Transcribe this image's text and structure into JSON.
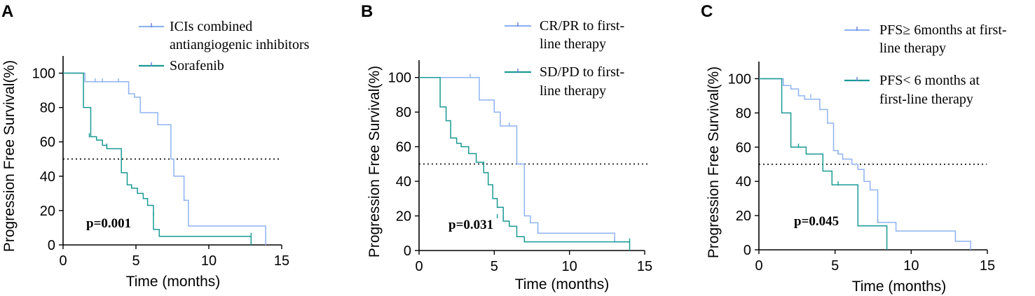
{
  "colors": {
    "series1": "#8fb3f0",
    "series2": "#1a9a94"
  },
  "chart_data": [
    {
      "type": "line",
      "panel": "A",
      "title": "",
      "xlabel": "Time (months)",
      "ylabel": "Progression Free Survival(%)",
      "xlim": [
        0,
        15
      ],
      "ylim": [
        0,
        110
      ],
      "xticks": [
        "0",
        "5",
        "10",
        "15"
      ],
      "yticks": [
        "0",
        "20",
        "40",
        "60",
        "80",
        "100"
      ],
      "median_line": 50,
      "p_value": "p=0.001",
      "legend_lines": [
        {
          "text": "ICIs combined",
          "series": 0
        },
        {
          "text": "antiangiogenic inhibitors",
          "series": -1
        },
        {
          "text": "Sorafenib",
          "series": 1
        }
      ],
      "series": [
        {
          "name": "ICIs combined antiangiogenic inhibitors",
          "x": [
            0,
            1.5,
            1.5,
            4.5,
            4.5,
            4.9,
            4.9,
            5.3,
            5.3,
            6.5,
            6.5,
            7.4,
            7.4,
            7.6,
            7.6,
            8.3,
            8.3,
            8.6,
            8.6,
            13.9,
            13.9
          ],
          "y": [
            100,
            100,
            95,
            95,
            88,
            88,
            86,
            86,
            77,
            77,
            70,
            70,
            50,
            50,
            40,
            40,
            26,
            26,
            11,
            11,
            0
          ],
          "censored": [
            [
              2.2,
              95
            ],
            [
              2.7,
              95
            ],
            [
              3.8,
              95
            ],
            [
              4.5,
              89
            ],
            [
              8.3,
              26
            ]
          ]
        },
        {
          "name": "Sorafenib",
          "x": [
            0,
            1.4,
            1.4,
            1.9,
            1.9,
            2.3,
            2.3,
            2.7,
            2.7,
            3.0,
            3.0,
            4.0,
            4.0,
            4.4,
            4.4,
            4.7,
            4.7,
            5.1,
            5.1,
            5.5,
            5.5,
            5.8,
            5.8,
            6.2,
            6.2,
            6.6,
            6.6,
            12.9,
            12.9
          ],
          "y": [
            100,
            100,
            80,
            80,
            63,
            63,
            61,
            61,
            58,
            58,
            56,
            56,
            42,
            42,
            35,
            35,
            33,
            33,
            30,
            30,
            27,
            27,
            23,
            23,
            9,
            9,
            5,
            5,
            0
          ],
          "censored": [
            [
              1.8,
              63
            ],
            [
              3.0,
              57
            ],
            [
              6.2,
              17
            ],
            [
              12.9,
              5
            ]
          ]
        }
      ]
    },
    {
      "type": "line",
      "panel": "B",
      "title": "",
      "xlabel": "Time (months)",
      "ylabel": "Progression Free Survival(%)",
      "xlim": [
        0,
        15
      ],
      "ylim": [
        0,
        110
      ],
      "xticks": [
        "0",
        "5",
        "10",
        "15"
      ],
      "yticks": [
        "0",
        "20",
        "40",
        "60",
        "80",
        "100"
      ],
      "median_line": 50,
      "p_value": "p=0.031",
      "legend_lines": [
        {
          "text": "CR/PR to first-",
          "series": 0
        },
        {
          "text": "line therapy",
          "series": -1
        },
        {
          "text": "SD/PD to first-",
          "series": 1
        },
        {
          "text": "line therapy",
          "series": -1
        }
      ],
      "series": [
        {
          "name": "CR/PR to first-line therapy",
          "x": [
            0,
            4.0,
            4.0,
            5.0,
            5.0,
            5.4,
            5.4,
            6.5,
            6.5,
            7.0,
            7.0,
            7.4,
            7.4,
            7.9,
            7.9,
            13.0,
            13.0,
            14.0
          ],
          "y": [
            100,
            100,
            87,
            87,
            80,
            80,
            72,
            72,
            50,
            50,
            20,
            20,
            16,
            16,
            10,
            10,
            5,
            5
          ],
          "censored": [
            [
              3.4,
              100
            ],
            [
              6.0,
              72
            ],
            [
              7.9,
              10
            ],
            [
              13.0,
              5
            ]
          ]
        },
        {
          "name": "SD/PD to first-line therapy",
          "x": [
            0,
            1.4,
            1.4,
            1.8,
            1.8,
            2.1,
            2.1,
            2.5,
            2.5,
            2.8,
            2.8,
            3.3,
            3.3,
            3.8,
            3.8,
            4.3,
            4.3,
            4.6,
            4.6,
            4.9,
            4.9,
            5.2,
            5.2,
            5.6,
            5.6,
            6.0,
            6.0,
            6.5,
            6.5,
            7.0,
            7.0,
            14.0,
            14.0
          ],
          "y": [
            100,
            100,
            83,
            83,
            75,
            75,
            65,
            65,
            62,
            62,
            60,
            60,
            56,
            56,
            51,
            51,
            45,
            45,
            38,
            38,
            30,
            30,
            25,
            25,
            17,
            17,
            14,
            14,
            8,
            8,
            5,
            5,
            0
          ],
          "censored": [
            [
              5.2,
              19
            ],
            [
              6.0,
              15
            ],
            [
              14.0,
              5
            ]
          ]
        }
      ]
    },
    {
      "type": "line",
      "panel": "C",
      "title": "",
      "xlabel": "Time (months)",
      "ylabel": "Progression Free Survival(%)",
      "xlim": [
        0,
        15
      ],
      "ylim": [
        0,
        110
      ],
      "xticks": [
        "0",
        "5",
        "10",
        "15"
      ],
      "yticks": [
        "0",
        "20",
        "40",
        "60",
        "80",
        "100"
      ],
      "median_line": 50,
      "p_value": "p=0.045",
      "legend_lines": [
        {
          "text": "PFS≥ 6months at first-",
          "series": 0
        },
        {
          "text": "line therapy",
          "series": -1
        },
        {
          "text": "PFS< 6 months at",
          "series": 1
        },
        {
          "text": "first-line therapy",
          "series": -1
        }
      ],
      "series": [
        {
          "name": "PFS≥ 6months at first-line therapy",
          "x": [
            0,
            1.6,
            1.6,
            2.1,
            2.1,
            2.6,
            2.6,
            3.0,
            3.0,
            4.0,
            4.0,
            4.5,
            4.5,
            4.9,
            4.9,
            5.2,
            5.2,
            5.5,
            5.5,
            6.1,
            6.1,
            6.5,
            6.5,
            6.9,
            6.9,
            7.3,
            7.3,
            7.8,
            7.8,
            9.0,
            9.0,
            12.9,
            12.9,
            13.9,
            13.9
          ],
          "y": [
            100,
            100,
            96,
            96,
            94,
            94,
            90,
            90,
            88,
            88,
            82,
            82,
            74,
            74,
            58,
            58,
            56,
            56,
            53,
            53,
            50,
            50,
            47,
            47,
            40,
            40,
            35,
            35,
            16,
            16,
            11,
            11,
            5,
            5,
            0
          ],
          "censored": [
            [
              3.4,
              89
            ],
            [
              5.2,
              56
            ],
            [
              7.8,
              16
            ]
          ]
        },
        {
          "name": "PFS< 6 months at first-line therapy",
          "x": [
            0,
            1.5,
            1.5,
            2.1,
            2.1,
            3.1,
            3.1,
            4.2,
            4.2,
            4.8,
            4.8,
            6.5,
            6.5,
            6.9,
            6.9,
            8.4,
            8.4
          ],
          "y": [
            100,
            100,
            80,
            80,
            60,
            60,
            56,
            56,
            46,
            46,
            38,
            38,
            14,
            14,
            14,
            14,
            0
          ],
          "censored": [
            [
              2.6,
              60
            ],
            [
              5.2,
              38
            ]
          ]
        }
      ]
    }
  ]
}
